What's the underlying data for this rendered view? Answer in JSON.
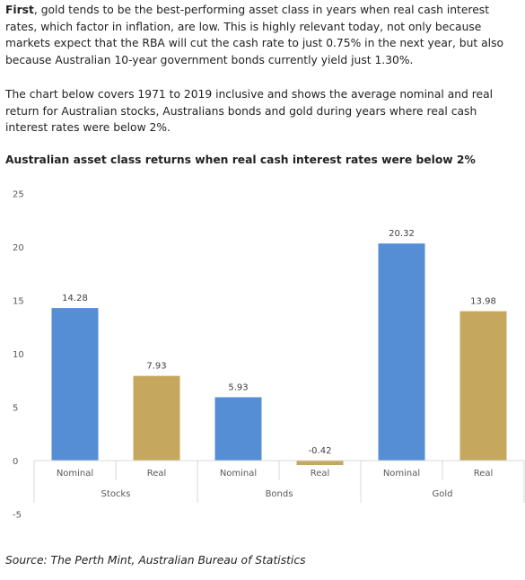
{
  "text": {
    "p1_bold": "First",
    "p1_rest": ", gold tends to be the best-performing asset class in years when real cash interest rates, which factor in inflation, are low. This is highly relevant today, not only because markets expect that the RBA will cut the cash rate to just 0.75% in the next year, but also because Australian 10-year government bonds currently yield just 1.30%.",
    "p2": "The chart below covers 1971 to 2019 inclusive and shows the average nominal and real return for Australian stocks, Australians bonds and gold during years where real cash interest rates were below 2%.",
    "source": "Source: The Perth Mint, Australian Bureau of Statistics"
  },
  "chart_data": {
    "type": "bar",
    "title": "Australian asset class returns when real cash interest rates were below 2%",
    "xlabel": "",
    "ylabel": "",
    "ylim": [
      -5,
      25
    ],
    "yticks": [
      -5,
      0,
      5,
      10,
      15,
      20,
      25
    ],
    "grid": false,
    "legend": "none",
    "groups": [
      "Stocks",
      "Bonds",
      "Gold"
    ],
    "categories": [
      "Nominal",
      "Real",
      "Nominal",
      "Real",
      "Nominal",
      "Real"
    ],
    "values": [
      14.28,
      7.93,
      5.93,
      -0.42,
      20.32,
      13.98
    ],
    "value_labels": [
      "14.28",
      "7.93",
      "5.93",
      "-0.42",
      "20.32",
      "13.98"
    ],
    "colors": {
      "nominal": "#558ed5",
      "real": "#c6a75e",
      "axis": "#d9d9d9",
      "text": "#595959"
    }
  }
}
